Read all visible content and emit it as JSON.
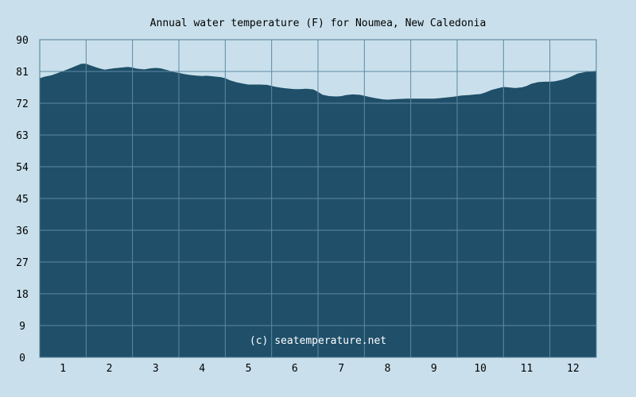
{
  "chart_data": {
    "type": "area",
    "title": "Annual water temperature (F) for Noumea, New Caledonia",
    "xlabel": "",
    "ylabel": "",
    "x_tick_labels": [
      "1",
      "2",
      "3",
      "4",
      "5",
      "6",
      "7",
      "8",
      "9",
      "10",
      "11",
      "12"
    ],
    "y_tick_labels": [
      "0",
      "9",
      "18",
      "27",
      "36",
      "45",
      "54",
      "63",
      "72",
      "81",
      "90"
    ],
    "ylim": [
      0,
      90
    ],
    "xlim": [
      0.5,
      12.5
    ],
    "grid": true,
    "watermark": "(c) seatemperature.net",
    "colors": {
      "background": "#c9e0ec",
      "fill": "#1f4f69",
      "grid": "#5f8aa3",
      "border": "#4f7a94"
    },
    "series": [
      {
        "x": [
          0.5,
          0.6,
          0.75,
          0.9,
          1.0,
          1.1,
          1.25,
          1.4,
          1.5,
          1.6,
          1.75,
          1.9,
          2.0,
          2.1,
          2.25,
          2.4,
          2.5,
          2.6,
          2.75,
          2.9,
          3.0,
          3.1,
          3.25,
          3.4,
          3.5,
          3.6,
          3.75,
          3.9,
          4.0,
          4.1,
          4.25,
          4.4,
          4.5,
          4.6,
          4.75,
          4.9,
          5.0,
          5.1,
          5.25,
          5.4,
          5.5,
          5.6,
          5.75,
          5.9,
          6.0,
          6.1,
          6.25,
          6.4,
          6.5,
          6.6,
          6.75,
          6.9,
          7.0,
          7.1,
          7.25,
          7.4,
          7.5,
          7.6,
          7.75,
          7.9,
          8.0,
          8.1,
          8.25,
          8.4,
          8.5,
          8.6,
          8.75,
          8.9,
          9.0,
          9.1,
          9.25,
          9.4,
          9.5,
          9.6,
          9.75,
          9.9,
          10.0,
          10.1,
          10.25,
          10.4,
          10.5,
          10.6,
          10.75,
          10.9,
          11.0,
          11.1,
          11.25,
          11.4,
          11.5,
          11.6,
          11.75,
          11.9,
          12.0,
          12.1,
          12.25,
          12.4,
          12.5
        ],
        "y": [
          79.1,
          79.5,
          79.9,
          80.6,
          81.1,
          81.6,
          82.4,
          83.2,
          83.2,
          82.7,
          82.0,
          81.5,
          81.7,
          81.9,
          82.1,
          82.3,
          82.1,
          81.8,
          81.6,
          81.9,
          82.0,
          81.9,
          81.4,
          80.8,
          80.6,
          80.3,
          80.0,
          79.8,
          79.7,
          79.8,
          79.6,
          79.4,
          79.1,
          78.5,
          77.9,
          77.5,
          77.3,
          77.3,
          77.3,
          77.2,
          76.9,
          76.6,
          76.3,
          76.1,
          76.0,
          76.0,
          76.1,
          75.9,
          75.2,
          74.4,
          74.0,
          73.9,
          74.0,
          74.3,
          74.5,
          74.4,
          74.1,
          73.8,
          73.4,
          73.1,
          73.0,
          73.1,
          73.2,
          73.3,
          73.3,
          73.3,
          73.3,
          73.3,
          73.3,
          73.4,
          73.6,
          73.8,
          74.0,
          74.2,
          74.3,
          74.5,
          74.6,
          75.0,
          75.8,
          76.3,
          76.6,
          76.5,
          76.3,
          76.5,
          76.9,
          77.5,
          78.0,
          78.1,
          78.1,
          78.2,
          78.6,
          79.2,
          79.8,
          80.4,
          80.8,
          81.1,
          81.2
        ]
      }
    ]
  }
}
